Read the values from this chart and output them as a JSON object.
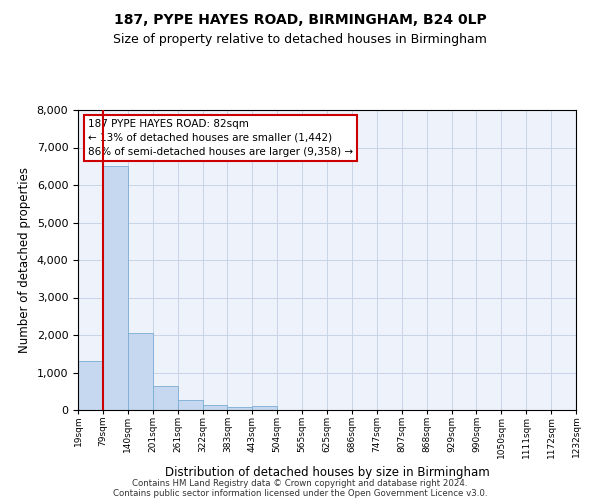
{
  "title1": "187, PYPE HAYES ROAD, BIRMINGHAM, B24 0LP",
  "title2": "Size of property relative to detached houses in Birmingham",
  "xlabel": "Distribution of detached houses by size in Birmingham",
  "ylabel": "Number of detached properties",
  "bar_values": [
    1300,
    6500,
    2050,
    650,
    280,
    130,
    80,
    100,
    0,
    0,
    0,
    0,
    0,
    0,
    0,
    0,
    0,
    0,
    0,
    0
  ],
  "categories": [
    "19sqm",
    "79sqm",
    "140sqm",
    "201sqm",
    "261sqm",
    "322sqm",
    "383sqm",
    "443sqm",
    "504sqm",
    "565sqm",
    "625sqm",
    "686sqm",
    "747sqm",
    "807sqm",
    "868sqm",
    "929sqm",
    "990sqm",
    "1050sqm",
    "1111sqm",
    "1172sqm",
    "1232sqm"
  ],
  "bar_color": "#c5d8f0",
  "bar_edge_color": "#7aadd4",
  "vline_x": 1,
  "vline_color": "#cc0000",
  "annotation_text": "187 PYPE HAYES ROAD: 82sqm\n← 13% of detached houses are smaller (1,442)\n86% of semi-detached houses are larger (9,358) →",
  "annotation_box_color": "#ffffff",
  "annotation_box_edge": "#cc0000",
  "ylim": [
    0,
    8000
  ],
  "yticks": [
    0,
    1000,
    2000,
    3000,
    4000,
    5000,
    6000,
    7000,
    8000
  ],
  "footer1": "Contains HM Land Registry data © Crown copyright and database right 2024.",
  "footer2": "Contains public sector information licensed under the Open Government Licence v3.0.",
  "bg_color": "#eef2fa",
  "grid_color": "#c8d4e8"
}
